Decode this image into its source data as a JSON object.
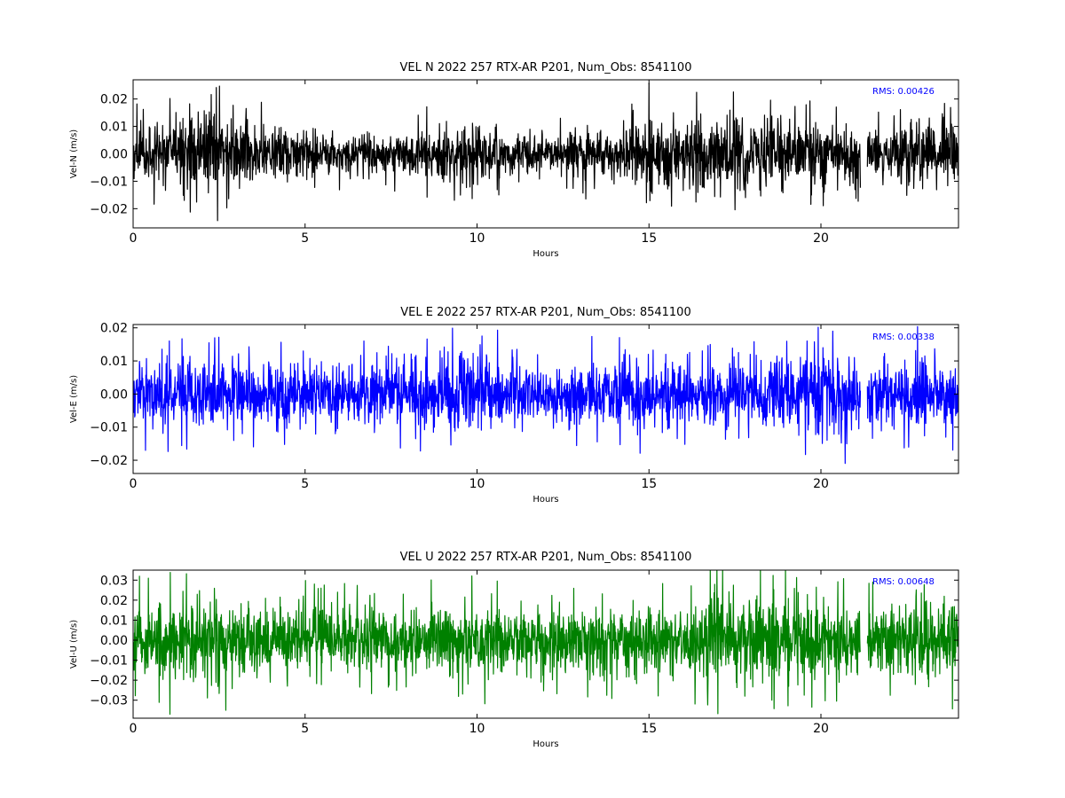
{
  "chart_data": [
    {
      "type": "line",
      "title": "VEL N 2022 257 RTX-AR  P201, Num_Obs: 8541100",
      "xlabel": "Hours",
      "ylabel": "Vel-N (m/s)",
      "xlim": [
        0,
        24
      ],
      "ylim": [
        -0.027,
        0.027
      ],
      "x_ticks": [
        0,
        5,
        10,
        15,
        20
      ],
      "x_tick_labels": [
        "0",
        "5",
        "10",
        "15",
        "20"
      ],
      "y_ticks": [
        -0.02,
        -0.01,
        0.0,
        0.01,
        0.02
      ],
      "y_tick_labels": [
        "−0.02",
        "−0.01",
        "0.00",
        "0.01",
        "0.02"
      ],
      "annotation": "RMS:  0.00426",
      "rms": 0.00426,
      "data_gap_hours": [
        21.15,
        21.35
      ],
      "spike_range": [
        -0.027,
        0.027
      ],
      "noise_envelope": [
        {
          "x": 0,
          "amp": 0.011
        },
        {
          "x": 1,
          "amp": 0.012
        },
        {
          "x": 2,
          "amp": 0.016
        },
        {
          "x": 3,
          "amp": 0.015
        },
        {
          "x": 4,
          "amp": 0.011
        },
        {
          "x": 5,
          "amp": 0.01
        },
        {
          "x": 6,
          "amp": 0.009
        },
        {
          "x": 7,
          "amp": 0.009
        },
        {
          "x": 8,
          "amp": 0.009
        },
        {
          "x": 9,
          "amp": 0.013
        },
        {
          "x": 10,
          "amp": 0.012
        },
        {
          "x": 11,
          "amp": 0.009
        },
        {
          "x": 12,
          "amp": 0.006
        },
        {
          "x": 13,
          "amp": 0.01
        },
        {
          "x": 14,
          "amp": 0.011
        },
        {
          "x": 15,
          "amp": 0.016
        },
        {
          "x": 16,
          "amp": 0.015
        },
        {
          "x": 17,
          "amp": 0.014
        },
        {
          "x": 18,
          "amp": 0.017
        },
        {
          "x": 19,
          "amp": 0.013
        },
        {
          "x": 20,
          "amp": 0.012
        },
        {
          "x": 21,
          "amp": 0.012
        },
        {
          "x": 22,
          "amp": 0.009
        },
        {
          "x": 23,
          "amp": 0.012
        },
        {
          "x": 24,
          "amp": 0.013
        }
      ],
      "color": "#000000"
    },
    {
      "type": "line",
      "title": "VEL E 2022 257 RTX-AR  P201, Num_Obs: 8541100",
      "xlabel": "Hours",
      "ylabel": "Vel-E (m/s)",
      "xlim": [
        0,
        24
      ],
      "ylim": [
        -0.024,
        0.021
      ],
      "x_ticks": [
        0,
        5,
        10,
        15,
        20
      ],
      "x_tick_labels": [
        "0",
        "5",
        "10",
        "15",
        "20"
      ],
      "y_ticks": [
        -0.02,
        -0.01,
        0.0,
        0.01,
        0.02
      ],
      "y_tick_labels": [
        "−0.02",
        "−0.01",
        "0.00",
        "0.01",
        "0.02"
      ],
      "annotation": "RMS:  0.00338",
      "rms": 0.00338,
      "data_gap_hours": [
        21.15,
        21.35
      ],
      "spike_range": [
        -0.024,
        0.021
      ],
      "noise_envelope": [
        {
          "x": 0,
          "amp": 0.01
        },
        {
          "x": 1,
          "amp": 0.011
        },
        {
          "x": 2,
          "amp": 0.011
        },
        {
          "x": 3,
          "amp": 0.012
        },
        {
          "x": 4,
          "amp": 0.01
        },
        {
          "x": 5,
          "amp": 0.01
        },
        {
          "x": 6,
          "amp": 0.01
        },
        {
          "x": 7,
          "amp": 0.011
        },
        {
          "x": 8,
          "amp": 0.01
        },
        {
          "x": 9,
          "amp": 0.013
        },
        {
          "x": 10,
          "amp": 0.014
        },
        {
          "x": 11,
          "amp": 0.011
        },
        {
          "x": 12,
          "amp": 0.007
        },
        {
          "x": 13,
          "amp": 0.01
        },
        {
          "x": 14,
          "amp": 0.011
        },
        {
          "x": 15,
          "amp": 0.011
        },
        {
          "x": 16,
          "amp": 0.009
        },
        {
          "x": 17,
          "amp": 0.01
        },
        {
          "x": 18,
          "amp": 0.011
        },
        {
          "x": 19,
          "amp": 0.012
        },
        {
          "x": 20,
          "amp": 0.014
        },
        {
          "x": 21,
          "amp": 0.013
        },
        {
          "x": 22,
          "amp": 0.01
        },
        {
          "x": 23,
          "amp": 0.012
        },
        {
          "x": 24,
          "amp": 0.011
        }
      ],
      "color": "#0000ff"
    },
    {
      "type": "line",
      "title": "VEL U 2022 257 RTX-AR  P201, Num_Obs: 8541100",
      "xlabel": "Hours",
      "ylabel": "Vel-U (m/s)",
      "xlim": [
        0,
        24
      ],
      "ylim": [
        -0.039,
        0.035
      ],
      "x_ticks": [
        0,
        5,
        10,
        15,
        20
      ],
      "x_tick_labels": [
        "0",
        "5",
        "10",
        "15",
        "20"
      ],
      "y_ticks": [
        -0.03,
        -0.02,
        -0.01,
        0.0,
        0.01,
        0.02,
        0.03
      ],
      "y_tick_labels": [
        "−0.03",
        "−0.02",
        "−0.01",
        "0.00",
        "0.01",
        "0.02",
        "0.03"
      ],
      "annotation": "RMS:  0.00648",
      "rms": 0.00648,
      "data_gap_hours": [
        21.15,
        21.35
      ],
      "spike_range": [
        -0.039,
        0.035
      ],
      "noise_envelope": [
        {
          "x": 0,
          "amp": 0.018
        },
        {
          "x": 1,
          "amp": 0.024
        },
        {
          "x": 2,
          "amp": 0.023
        },
        {
          "x": 3,
          "amp": 0.02
        },
        {
          "x": 4,
          "amp": 0.019
        },
        {
          "x": 5,
          "amp": 0.018
        },
        {
          "x": 6,
          "amp": 0.017
        },
        {
          "x": 7,
          "amp": 0.017
        },
        {
          "x": 8,
          "amp": 0.018
        },
        {
          "x": 9,
          "amp": 0.02
        },
        {
          "x": 10,
          "amp": 0.021
        },
        {
          "x": 11,
          "amp": 0.019
        },
        {
          "x": 12,
          "amp": 0.017
        },
        {
          "x": 13,
          "amp": 0.018
        },
        {
          "x": 14,
          "amp": 0.018
        },
        {
          "x": 15,
          "amp": 0.019
        },
        {
          "x": 16,
          "amp": 0.019
        },
        {
          "x": 17,
          "amp": 0.023
        },
        {
          "x": 18,
          "amp": 0.024
        },
        {
          "x": 19,
          "amp": 0.022
        },
        {
          "x": 20,
          "amp": 0.02
        },
        {
          "x": 21,
          "amp": 0.019
        },
        {
          "x": 22,
          "amp": 0.019
        },
        {
          "x": 23,
          "amp": 0.022
        },
        {
          "x": 24,
          "amp": 0.021
        }
      ],
      "color": "#008000"
    }
  ],
  "colors": {
    "annotation": "#0000ff",
    "axes": "#000000",
    "background": "#ffffff"
  }
}
